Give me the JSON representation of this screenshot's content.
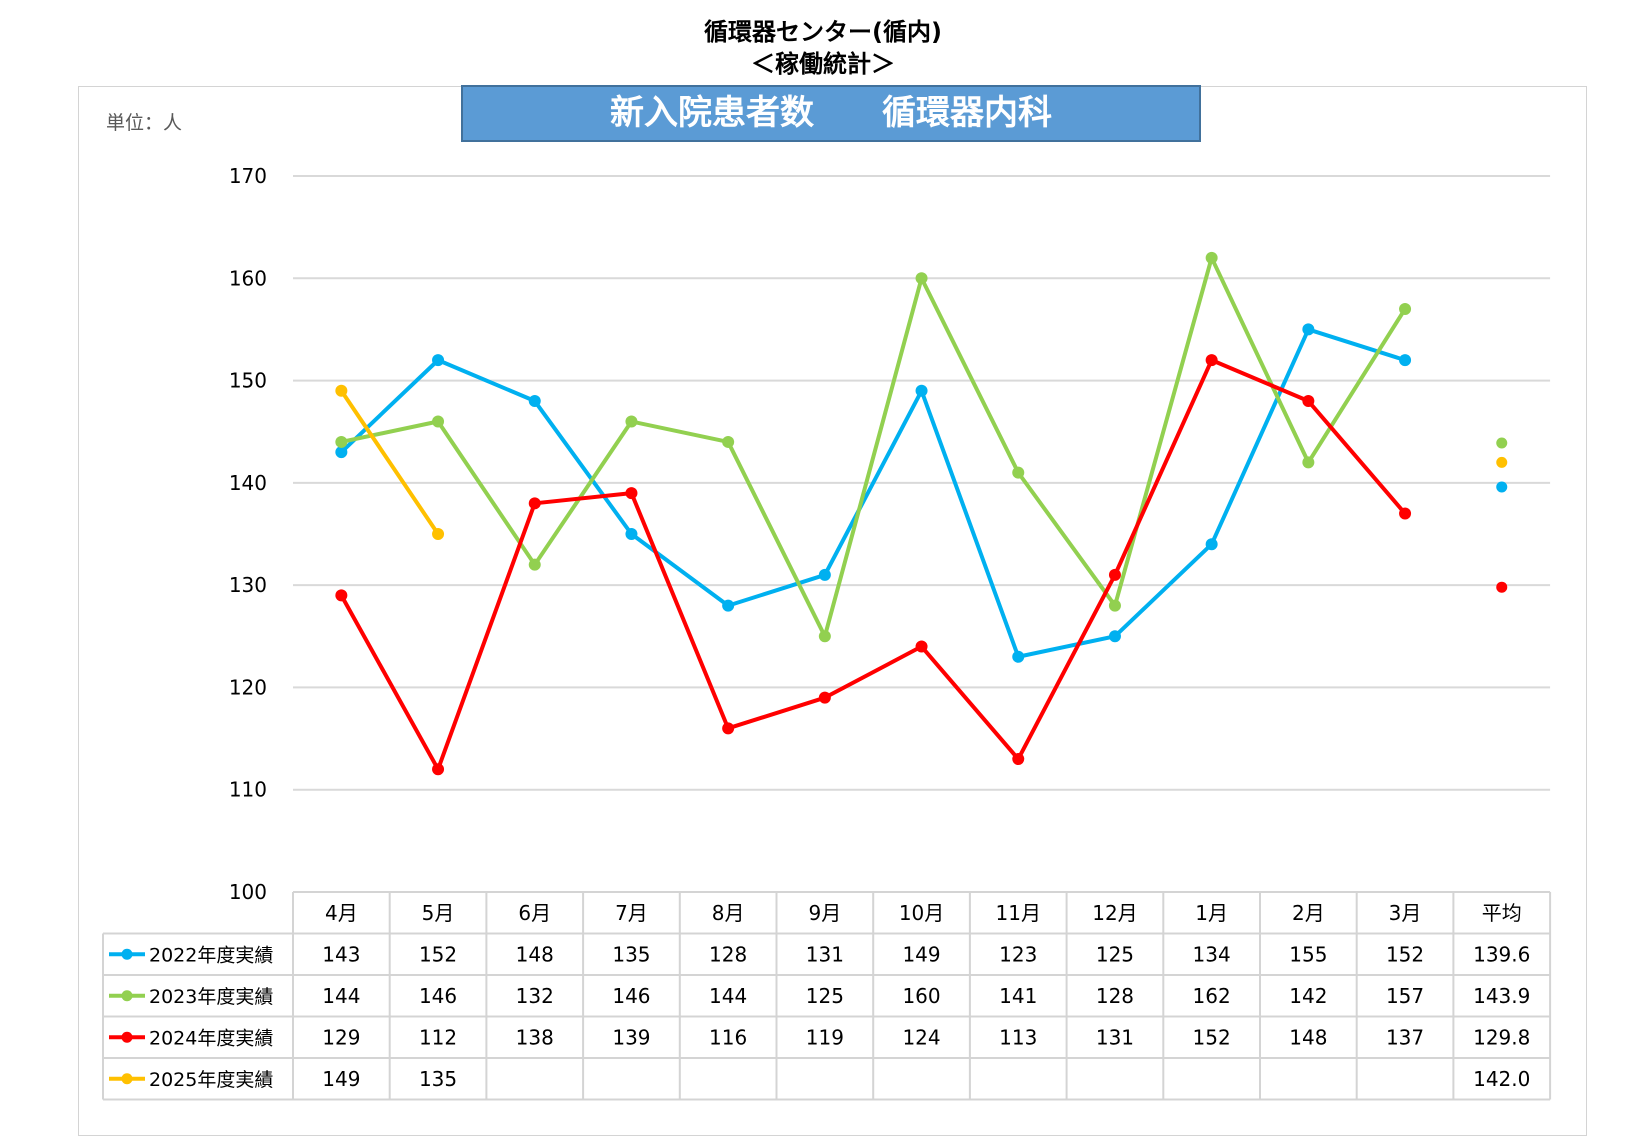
{
  "page": {
    "title_line1": "循環器センター(循内)",
    "title_line2": "＜稼働統計＞"
  },
  "chart_data": {
    "type": "line",
    "title": "新入院患者数　　循環器内科",
    "unit_label": "単位：人",
    "categories": [
      "4月",
      "5月",
      "6月",
      "7月",
      "8月",
      "9月",
      "10月",
      "11月",
      "12月",
      "1月",
      "2月",
      "3月"
    ],
    "average_label": "平均",
    "ylim": [
      100,
      170
    ],
    "yticks": [
      100,
      110,
      120,
      130,
      140,
      150,
      160,
      170
    ],
    "grid": true,
    "series": [
      {
        "name": "2022年度実績",
        "color": "#00b0f0",
        "values": [
          143,
          152,
          148,
          135,
          128,
          131,
          149,
          123,
          125,
          134,
          155,
          152
        ],
        "average": 139.6
      },
      {
        "name": "2023年度実績",
        "color": "#92d050",
        "values": [
          144,
          146,
          132,
          146,
          144,
          125,
          160,
          141,
          128,
          162,
          142,
          157
        ],
        "average": 143.9
      },
      {
        "name": "2024年度実績",
        "color": "#ff0000",
        "values": [
          129,
          112,
          138,
          139,
          116,
          119,
          124,
          113,
          131,
          152,
          148,
          137
        ],
        "average": 129.8
      },
      {
        "name": "2025年度実績",
        "color": "#ffc000",
        "values": [
          149,
          135,
          null,
          null,
          null,
          null,
          null,
          null,
          null,
          null,
          null,
          null
        ],
        "average": 142.0
      }
    ]
  }
}
